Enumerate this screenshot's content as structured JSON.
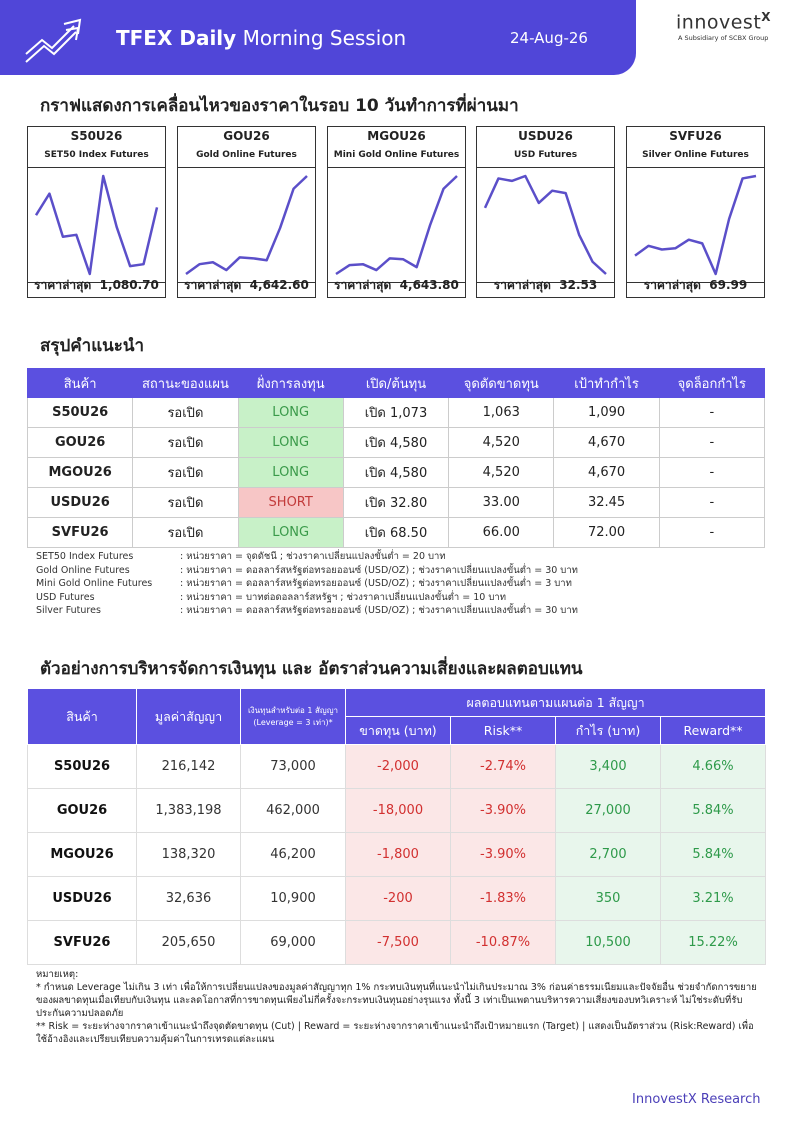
{
  "header": {
    "title_bold": "TFEX Daily",
    "title_rest": "Morning Session",
    "date": "24-Aug-26",
    "logo": "innovest",
    "logo_mark": "X",
    "logo_sub": "A Subsidiary of SCBX Group"
  },
  "price_section": {
    "title": "กราฟแสดงการเคลื่อนไหวของราคาในรอบ 10 วันทำการที่ผ่านมา",
    "latest_label": "ราคาล่าสุด"
  },
  "chart_data": [
    {
      "type": "line",
      "title": "S50U26",
      "subtitle": "SET50 Index Futures",
      "color": "#5b4fc9",
      "values": [
        1070,
        1081,
        1059,
        1060,
        1040,
        1090,
        1064,
        1044,
        1045,
        1074
      ],
      "latest_price": "1,080.70"
    },
    {
      "type": "line",
      "title": "GOU26",
      "subtitle": "Gold Online Futures",
      "color": "#5b4fc9",
      "values": [
        4450,
        4470,
        4474,
        4458,
        4484,
        4482,
        4478,
        4544,
        4624,
        4650
      ],
      "latest_price": "4,642.60"
    },
    {
      "type": "line",
      "title": "MGOU26",
      "subtitle": "Mini Gold Online Futures",
      "color": "#5b4fc9",
      "values": [
        4450,
        4468,
        4470,
        4458,
        4482,
        4480,
        4464,
        4550,
        4624,
        4650
      ],
      "latest_price": "4,643.80"
    },
    {
      "type": "line",
      "title": "USDU26",
      "subtitle": "USD Futures",
      "color": "#5b4fc9",
      "values": [
        33.04,
        33.28,
        33.26,
        33.3,
        33.08,
        33.18,
        33.16,
        32.82,
        32.6,
        32.5
      ],
      "latest_price": "32.53"
    },
    {
      "type": "line",
      "title": "SVFU26",
      "subtitle": "Silver Online Futures",
      "color": "#5b4fc9",
      "values": [
        63.5,
        64.3,
        64.0,
        64.1,
        64.8,
        64.5,
        62.0,
        66.5,
        69.8,
        70.0
      ],
      "latest_price": "69.99"
    }
  ],
  "summary": {
    "title": "สรุปคำแนะนำ",
    "headers": [
      "สินค้า",
      "สถานะของแผน",
      "ฝั่งการลงทุน",
      "เปิด/ต้นทุน",
      "จุดตัดขาดทุน",
      "เป้าทำกำไร",
      "จุดล็อกกำไร"
    ],
    "rows": [
      [
        "S50U26",
        "รอเปิด",
        "LONG",
        "เปิด 1,073",
        "1,063",
        "1,090",
        "-"
      ],
      [
        "GOU26",
        "รอเปิด",
        "LONG",
        "เปิด 4,580",
        "4,520",
        "4,670",
        "-"
      ],
      [
        "MGOU26",
        "รอเปิด",
        "LONG",
        "เปิด 4,580",
        "4,520",
        "4,670",
        "-"
      ],
      [
        "USDU26",
        "รอเปิด",
        "SHORT",
        "เปิด 32.80",
        "33.00",
        "32.45",
        "-"
      ],
      [
        "SVFU26",
        "รอเปิด",
        "LONG",
        "เปิด 68.50",
        "66.00",
        "72.00",
        "-"
      ]
    ],
    "side_colors": [
      [
        "#c8f1c8",
        "#3a9a4a"
      ],
      [
        "#c8f1c8",
        "#3a9a4a"
      ],
      [
        "#c8f1c8",
        "#3a9a4a"
      ],
      [
        "#f7c6c6",
        "#c23b3b"
      ],
      [
        "#c8f1c8",
        "#3a9a4a"
      ]
    ]
  },
  "notes": [
    [
      "SET50 Index Futures",
      ": หน่วยราคา = จุดดัชนี ; ช่วงราคาเปลี่ยนแปลงขั้นต่ำ = 20 บาท"
    ],
    [
      "Gold Online Futures",
      ": หน่วยราคา = ดอลลาร์สหรัฐต่อทรอยออนซ์ (USD/OZ) ; ช่วงราคาเปลี่ยนแปลงขั้นต่ำ = 30 บาท"
    ],
    [
      "Mini Gold Online Futures",
      ": หน่วยราคา = ดอลลาร์สหรัฐต่อทรอยออนซ์ (USD/OZ) ; ช่วงราคาเปลี่ยนแปลงขั้นต่ำ = 3 บาท"
    ],
    [
      "USD Futures",
      ": หน่วยราคา = บาทต่อดอลลาร์สหรัฐฯ ; ช่วงราคาเปลี่ยนแปลงขั้นต่ำ = 10 บาท"
    ],
    [
      "Silver Futures",
      ": หน่วยราคา = ดอลลาร์สหรัฐต่อทรอยออนซ์ (USD/OZ) ; ช่วงราคาเปลี่ยนแปลงขั้นต่ำ = 30 บาท"
    ]
  ],
  "money": {
    "title": "ตัวอย่างการบริหารจัดการเงินทุน และ อัตราส่วนความเสี่ยงและผลตอบแทน",
    "headers": {
      "product": "สินค้า",
      "contract": "มูลค่าสัญญา",
      "capital": "เงินทุนสำหรับต่อ 1 สัญญา (Leverage = 3 เท่า)*",
      "group": "ผลตอบแทนตามแผนต่อ 1 สัญญา",
      "loss": "ขาดทุน (บาท)",
      "risk": "Risk**",
      "profit": "กำไร (บาท)",
      "reward": "Reward**"
    },
    "rows": [
      [
        "S50U26",
        "216,142",
        "73,000",
        "-2,000",
        "-2.74%",
        "3,400",
        "4.66%"
      ],
      [
        "GOU26",
        "1,383,198",
        "462,000",
        "-18,000",
        "-3.90%",
        "27,000",
        "5.84%"
      ],
      [
        "MGOU26",
        "138,320",
        "46,200",
        "-1,800",
        "-3.90%",
        "2,700",
        "5.84%"
      ],
      [
        "USDU26",
        "32,636",
        "10,900",
        "-200",
        "-1.83%",
        "350",
        "3.21%"
      ],
      [
        "SVFU26",
        "205,650",
        "69,000",
        "-7,500",
        "-10.87%",
        "10,500",
        "15.22%"
      ]
    ],
    "column_colors": [
      "#111111",
      "#333333",
      "#333333",
      "#d23030",
      "#d23030",
      "#2e9a4a",
      "#2e9a4a"
    ],
    "column_fills": [
      "#ffffff",
      "#ffffff",
      "#ffffff",
      "#fbe7e7",
      "#fbe7e7",
      "#e8f6ec",
      "#e8f6ec"
    ]
  },
  "footnote": {
    "heading": "หมายเหตุ:",
    "lines": [
      "* กำหนด Leverage ไม่เกิน 3 เท่า เพื่อให้การเปลี่ยนแปลงของมูลค่าสัญญาทุก 1% กระทบเงินทุนที่แนะนำไม่เกินประมาณ 3% ก่อนค่าธรรมเนียมและปัจจัยอื่น ช่วยจำกัดการขยายของผลขาดทุนเมื่อเทียบกับเงินทุน และลดโอกาสที่การขาดทุนเพียงไม่กี่ครั้งจะกระทบเงินทุนอย่างรุนแรง ทั้งนี้ 3 เท่าเป็นเพดานบริหารความเสี่ยงของบทวิเคราะห์ ไม่ใช่ระดับที่รับประกันความปลอดภัย",
      "** Risk = ระยะห่างจากราคาเข้าแนะนำถึงจุดตัดขาดทุน (Cut) | Reward = ระยะห่างจากราคาเข้าแนะนำถึงเป้าหมายแรก (Target) | แสดงเป็นอัตราส่วน (Risk:Reward) เพื่อใช้อ้างอิงและเปรียบเทียบความคุ้มค่าในการเทรดแต่ละแผน"
    ]
  },
  "footer": {
    "brand": "InnovestX Research"
  }
}
